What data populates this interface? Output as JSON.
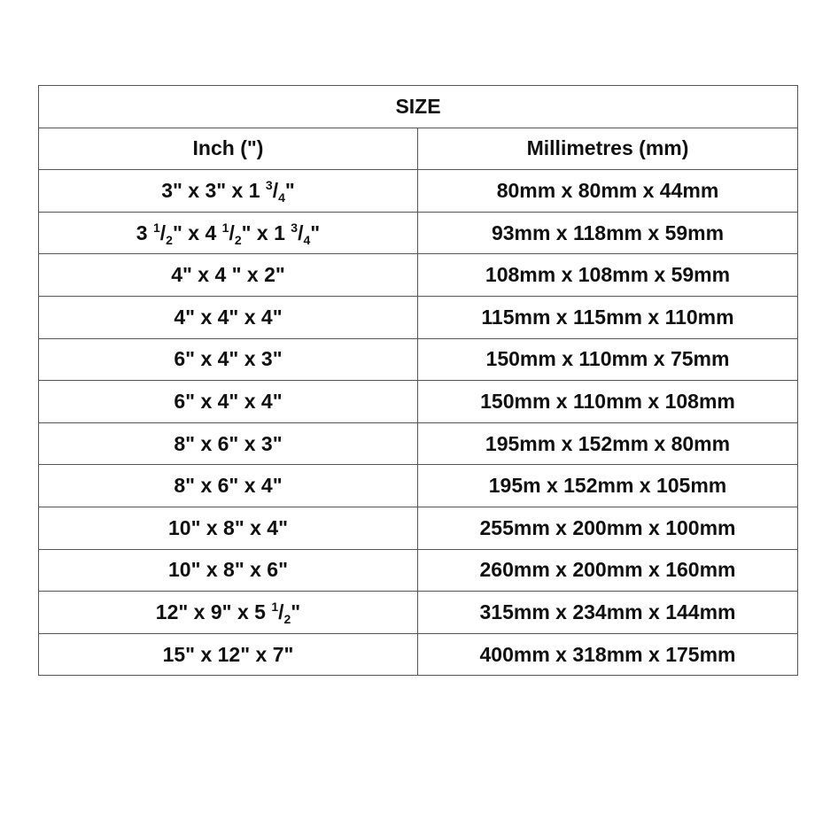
{
  "title": "SIZE",
  "headers": {
    "inch": "Inch (\")",
    "mm": "Millimetres (mm)"
  },
  "rows": [
    {
      "inch": [
        {
          "t": "3\" x 3\" x 1 "
        },
        {
          "sup": "3"
        },
        {
          "t": "/"
        },
        {
          "sub": "4"
        },
        {
          "t": "\""
        }
      ],
      "mm": "80mm x 80mm x 44mm"
    },
    {
      "inch": [
        {
          "t": "3 "
        },
        {
          "sup": "1"
        },
        {
          "t": "/"
        },
        {
          "sub": "2"
        },
        {
          "t": "\" x 4 "
        },
        {
          "sup": "1"
        },
        {
          "t": "/"
        },
        {
          "sub": "2"
        },
        {
          "t": "\" x 1 "
        },
        {
          "sup": "3"
        },
        {
          "t": "/"
        },
        {
          "sub": "4"
        },
        {
          "t": "\""
        }
      ],
      "mm": "93mm x 118mm x 59mm"
    },
    {
      "inch": [
        {
          "t": "4\" x 4 \" x 2\""
        }
      ],
      "mm": "108mm x 108mm x 59mm"
    },
    {
      "inch": [
        {
          "t": "4\" x 4\" x 4\""
        }
      ],
      "mm": "115mm x 115mm x 110mm"
    },
    {
      "inch": [
        {
          "t": "6\" x 4\" x 3\""
        }
      ],
      "mm": "150mm x 110mm x 75mm"
    },
    {
      "inch": [
        {
          "t": "6\" x 4\" x 4\""
        }
      ],
      "mm": "150mm x 110mm x 108mm"
    },
    {
      "inch": [
        {
          "t": "8\" x 6\" x 3\""
        }
      ],
      "mm": "195mm x 152mm x 80mm"
    },
    {
      "inch": [
        {
          "t": "8\" x 6\" x 4\""
        }
      ],
      "mm": "195m x 152mm x 105mm"
    },
    {
      "inch": [
        {
          "t": "10\" x 8\" x 4\""
        }
      ],
      "mm": "255mm x 200mm x 100mm"
    },
    {
      "inch": [
        {
          "t": "10\" x 8\" x 6\""
        }
      ],
      "mm": "260mm x 200mm x 160mm"
    },
    {
      "inch": [
        {
          "t": "12\" x 9\" x 5 "
        },
        {
          "sup": "1"
        },
        {
          "t": "/"
        },
        {
          "sub": "2"
        },
        {
          "t": "\""
        }
      ],
      "mm": "315mm x 234mm x 144mm"
    },
    {
      "inch": [
        {
          "t": "15\" x 12\" x 7\""
        }
      ],
      "mm": "400mm x 318mm x 175mm"
    }
  ]
}
